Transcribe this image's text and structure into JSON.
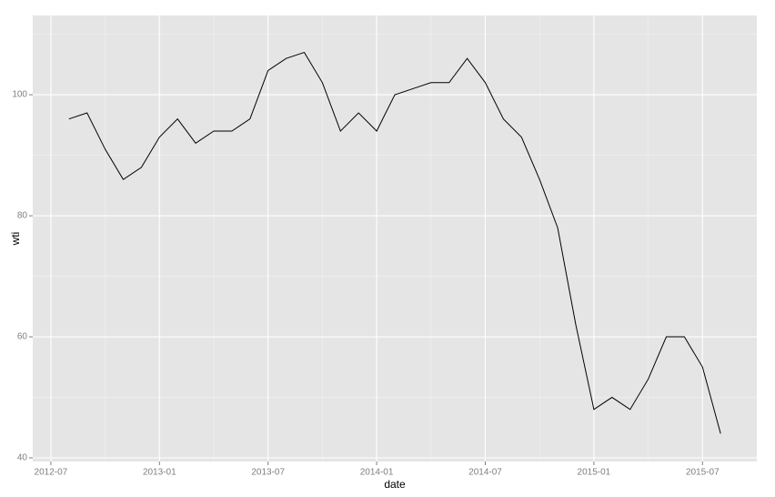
{
  "chart_data": {
    "type": "line",
    "x_label": "date",
    "y_label": "wti",
    "x": [
      "2012-08",
      "2012-09",
      "2012-10",
      "2012-11",
      "2012-12",
      "2013-01",
      "2013-02",
      "2013-03",
      "2013-04",
      "2013-05",
      "2013-06",
      "2013-07",
      "2013-08",
      "2013-09",
      "2013-10",
      "2013-11",
      "2013-12",
      "2014-01",
      "2014-02",
      "2014-03",
      "2014-04",
      "2014-05",
      "2014-06",
      "2014-07",
      "2014-08",
      "2014-09",
      "2014-10",
      "2014-11",
      "2014-12",
      "2015-01",
      "2015-02",
      "2015-03",
      "2015-04",
      "2015-05",
      "2015-06",
      "2015-07",
      "2015-08"
    ],
    "series": [
      {
        "name": "wti",
        "color": "#000000",
        "values": [
          96,
          97,
          91,
          86,
          88,
          93,
          96,
          92,
          94,
          94,
          96,
          104,
          106,
          107,
          102,
          94,
          97,
          94,
          100,
          101,
          102,
          102,
          106,
          102,
          96,
          93,
          86,
          78,
          62,
          48,
          50,
          48,
          53,
          60,
          60,
          55,
          44
        ]
      }
    ],
    "xlim": [
      "2012-06",
      "2015-10"
    ],
    "xticks": [
      "2012-07",
      "2013-01",
      "2013-07",
      "2014-01",
      "2014-07",
      "2015-01",
      "2015-07"
    ],
    "ylim": [
      39.4,
      113.1
    ],
    "yticks": [
      40,
      60,
      80,
      100
    ],
    "grid": true
  }
}
